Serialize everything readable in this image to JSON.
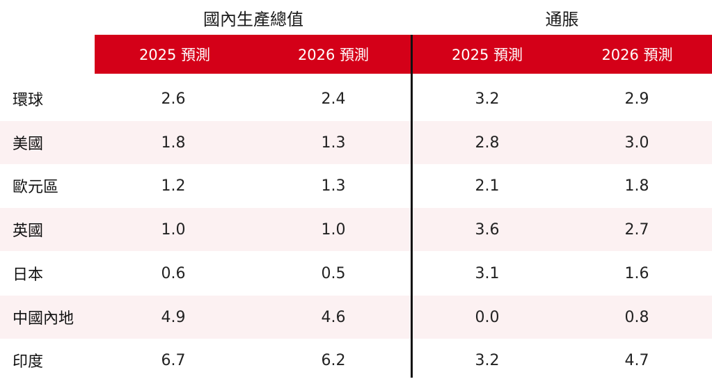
{
  "group_headers": {
    "gdp": "國內生產總值",
    "inflation": "通脹"
  },
  "column_headers": [
    "2025 預測",
    "2026 預測",
    "2025 預測",
    "2026 預測"
  ],
  "colors": {
    "header_bg": "#d40018",
    "header_text": "#ffffff",
    "row_shade": "#fcf1f2",
    "separator": "#111111"
  },
  "chart_data": {
    "type": "table",
    "column_groups": [
      {
        "name": "國內生產總值",
        "columns": [
          "2025 預測",
          "2026 預測"
        ]
      },
      {
        "name": "通脹",
        "columns": [
          "2025 預測",
          "2026 預測"
        ]
      }
    ],
    "rows": [
      {
        "label": "環球",
        "values": [
          "2.6",
          "2.4",
          "3.2",
          "2.9"
        ]
      },
      {
        "label": "美國",
        "values": [
          "1.8",
          "1.3",
          "2.8",
          "3.0"
        ]
      },
      {
        "label": "歐元區",
        "values": [
          "1.2",
          "1.3",
          "2.1",
          "1.8"
        ]
      },
      {
        "label": "英國",
        "values": [
          "1.0",
          "1.0",
          "3.6",
          "2.7"
        ]
      },
      {
        "label": "日本",
        "values": [
          "0.6",
          "0.5",
          "3.1",
          "1.6"
        ]
      },
      {
        "label": "中國內地",
        "values": [
          "4.9",
          "4.6",
          "0.0",
          "0.8"
        ]
      },
      {
        "label": "印度",
        "values": [
          "6.7",
          "6.2",
          "3.2",
          "4.7"
        ]
      }
    ]
  }
}
